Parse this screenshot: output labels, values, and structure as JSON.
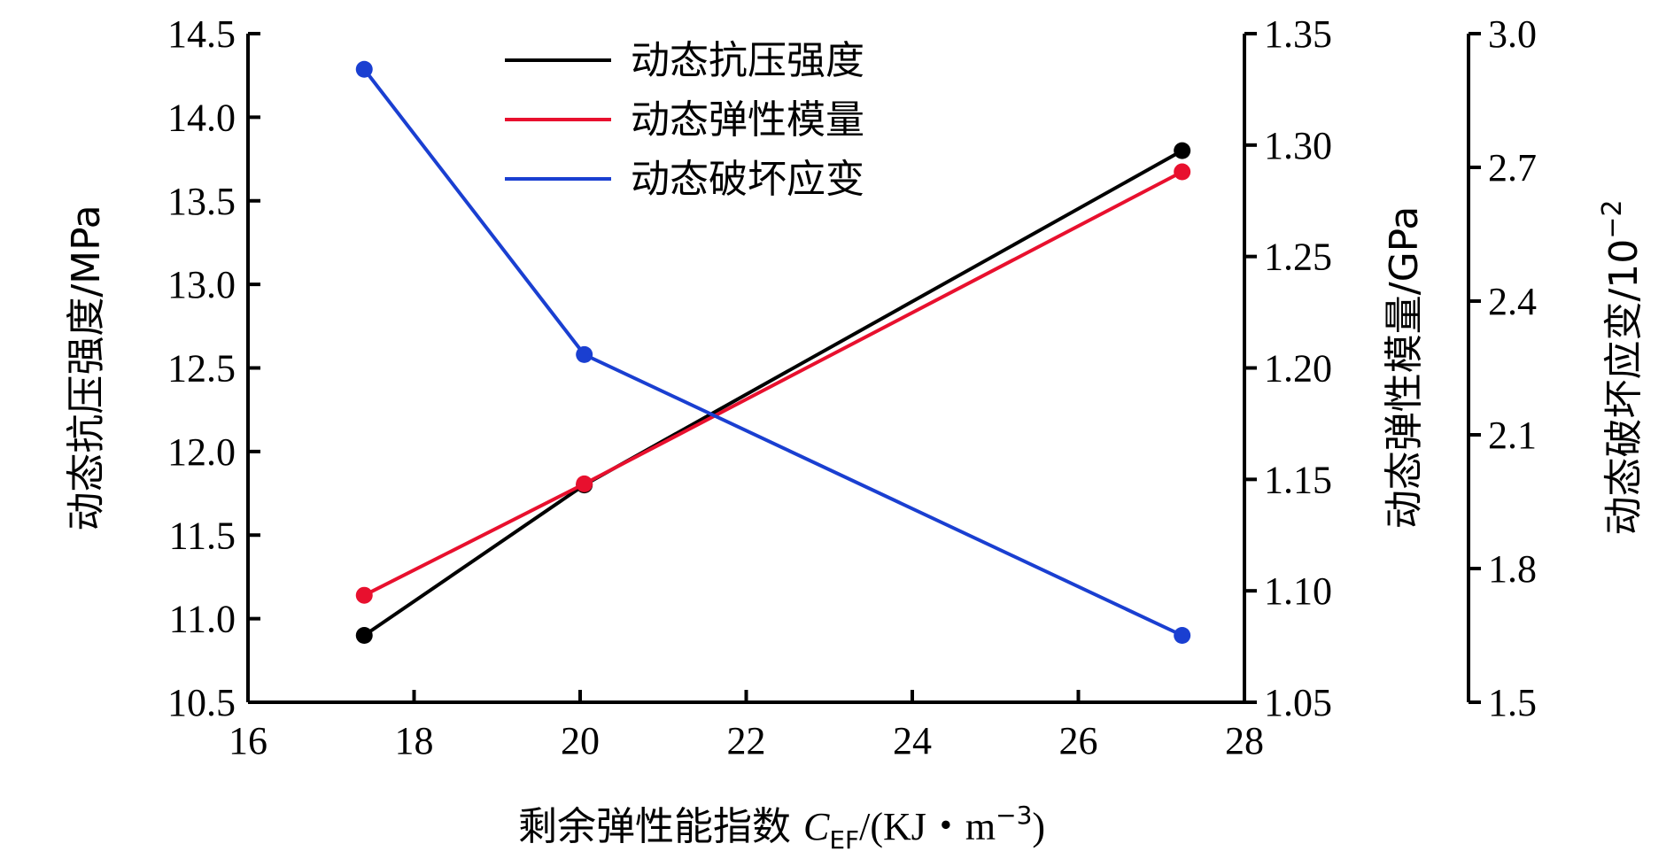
{
  "chart_data": {
    "type": "line",
    "x": [
      17.4,
      20.05,
      27.25
    ],
    "xlim": [
      16,
      28
    ],
    "xticks": [
      16,
      18,
      20,
      22,
      24,
      26,
      28
    ],
    "xlabel": {
      "main": "剩余弹性能指数 ",
      "italic": "C",
      "sub": "EF",
      "unit_pre": "/(KJ・m",
      "sup": "−3",
      "unit_post": ")"
    },
    "axes": [
      {
        "id": "strength",
        "side": "left",
        "label": "动态抗压强度/MPa",
        "ylim": [
          10.5,
          14.5
        ],
        "ticks": [
          10.5,
          11.0,
          11.5,
          12.0,
          12.5,
          13.0,
          13.5,
          14.0,
          14.5
        ],
        "decimals": 1
      },
      {
        "id": "modulus",
        "side": "right",
        "label": "动态弹性模量/GPa",
        "ylim": [
          1.05,
          1.35
        ],
        "ticks": [
          1.05,
          1.1,
          1.15,
          1.2,
          1.25,
          1.3,
          1.35
        ],
        "decimals": 2
      },
      {
        "id": "strain",
        "side": "right-outer",
        "label": "动态破坏应变/10",
        "label_sup": "−2",
        "ylim": [
          1.5,
          3.0
        ],
        "ticks": [
          1.5,
          1.8,
          2.1,
          2.4,
          2.7,
          3.0
        ],
        "decimals": 1
      }
    ],
    "series": [
      {
        "name": "动态抗压强度",
        "axis": "strength",
        "color": "#000000",
        "values": [
          10.9,
          11.8,
          13.8
        ]
      },
      {
        "name": "动态弹性模量",
        "axis": "modulus",
        "color": "#e8102e",
        "values": [
          1.098,
          1.148,
          1.288
        ]
      },
      {
        "name": "动态破坏应变",
        "axis": "strain",
        "color": "#1a3fd1",
        "values": [
          2.92,
          2.28,
          1.65
        ]
      }
    ],
    "legend": "top-center"
  }
}
